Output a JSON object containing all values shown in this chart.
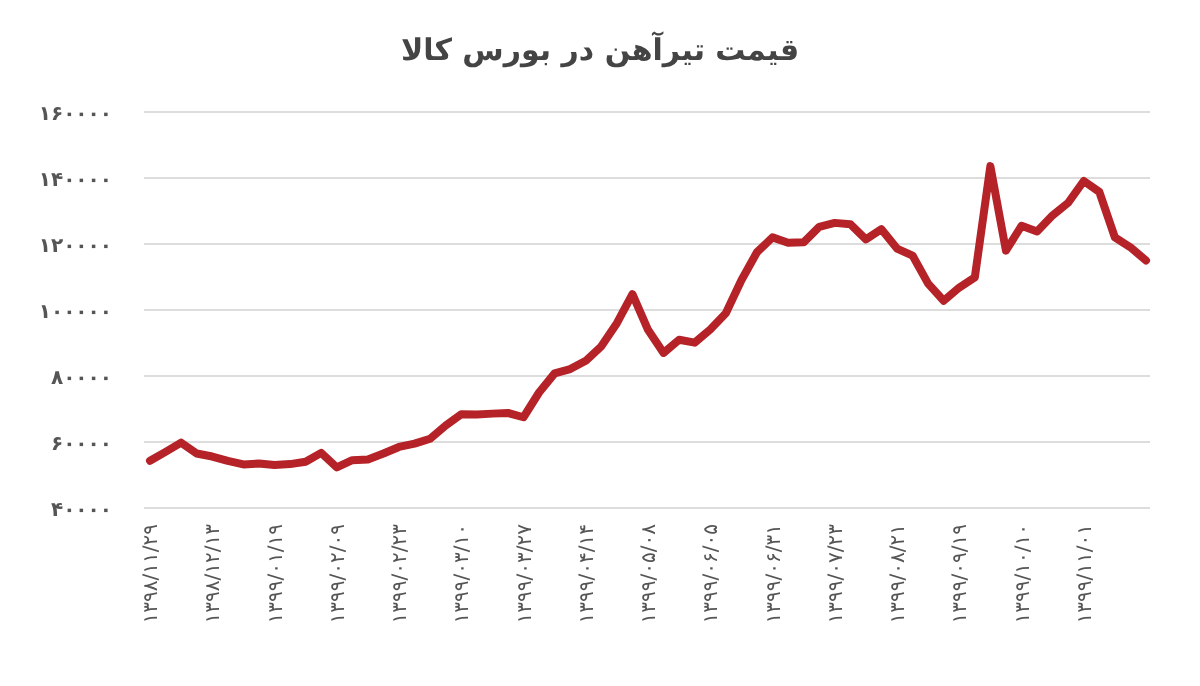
{
  "chart_data": {
    "type": "line",
    "title": "قیمت تیرآهن در بورس کالا",
    "categories": [
      "۱۳۹۸/۱۱/۲۹",
      null,
      null,
      null,
      "۱۳۹۸/۱۲/۱۳",
      null,
      null,
      null,
      "۱۳۹۹/۰۱/۱۹",
      null,
      null,
      null,
      "۱۳۹۹/۰۲/۰۹",
      null,
      null,
      null,
      "۱۳۹۹/۰۲/۲۳",
      null,
      null,
      null,
      "۱۳۹۹/۰۳/۱۰",
      null,
      null,
      null,
      "۱۳۹۹/۰۳/۲۷",
      null,
      null,
      null,
      "۱۳۹۹/۰۴/۱۴",
      null,
      null,
      null,
      "۱۳۹۹/۰۵/۰۸",
      null,
      null,
      null,
      "۱۳۹۹/۰۶/۰۵",
      null,
      null,
      null,
      "۱۳۹۹/۰۶/۳۱",
      null,
      null,
      null,
      "۱۳۹۹/۰۷/۲۳",
      null,
      null,
      null,
      "۱۳۹۹/۰۸/۲۱",
      null,
      null,
      null,
      "۱۳۹۹/۰۹/۱۹",
      null,
      null,
      null,
      "۱۳۹۹/۱۰/۱۰",
      null,
      null,
      null,
      "۱۳۹۹/۱۱/۰۱",
      null,
      null,
      null,
      null
    ],
    "values": [
      54300,
      57000,
      59800,
      56500,
      55600,
      54300,
      53200,
      53500,
      53000,
      53300,
      54000,
      56700,
      52300,
      54500,
      54700,
      56500,
      58500,
      59500,
      61000,
      65000,
      68400,
      68300,
      68600,
      68800,
      67500,
      75000,
      80800,
      82100,
      84600,
      89000,
      96000,
      104800,
      94000,
      87000,
      91000,
      90100,
      94100,
      99000,
      109000,
      117500,
      122000,
      120400,
      120500,
      125200,
      126400,
      126000,
      121400,
      124500,
      118600,
      116500,
      108000,
      102800,
      106800,
      109900,
      143600,
      118000,
      125500,
      123800,
      128700,
      132500,
      139100,
      135800,
      122000,
      119000,
      115000
    ],
    "color": "#b52227",
    "ylim": [
      40000,
      160000
    ],
    "yticks": [
      {
        "value": 40000,
        "label": "۴۰۰۰۰"
      },
      {
        "value": 60000,
        "label": "۶۰۰۰۰"
      },
      {
        "value": 80000,
        "label": "۸۰۰۰۰"
      },
      {
        "value": 100000,
        "label": "۱۰۰۰۰۰"
      },
      {
        "value": 120000,
        "label": "۱۲۰۰۰۰"
      },
      {
        "value": 140000,
        "label": "۱۴۰۰۰۰"
      },
      {
        "value": 160000,
        "label": "۱۶۰۰۰۰"
      }
    ],
    "grid": "y"
  }
}
